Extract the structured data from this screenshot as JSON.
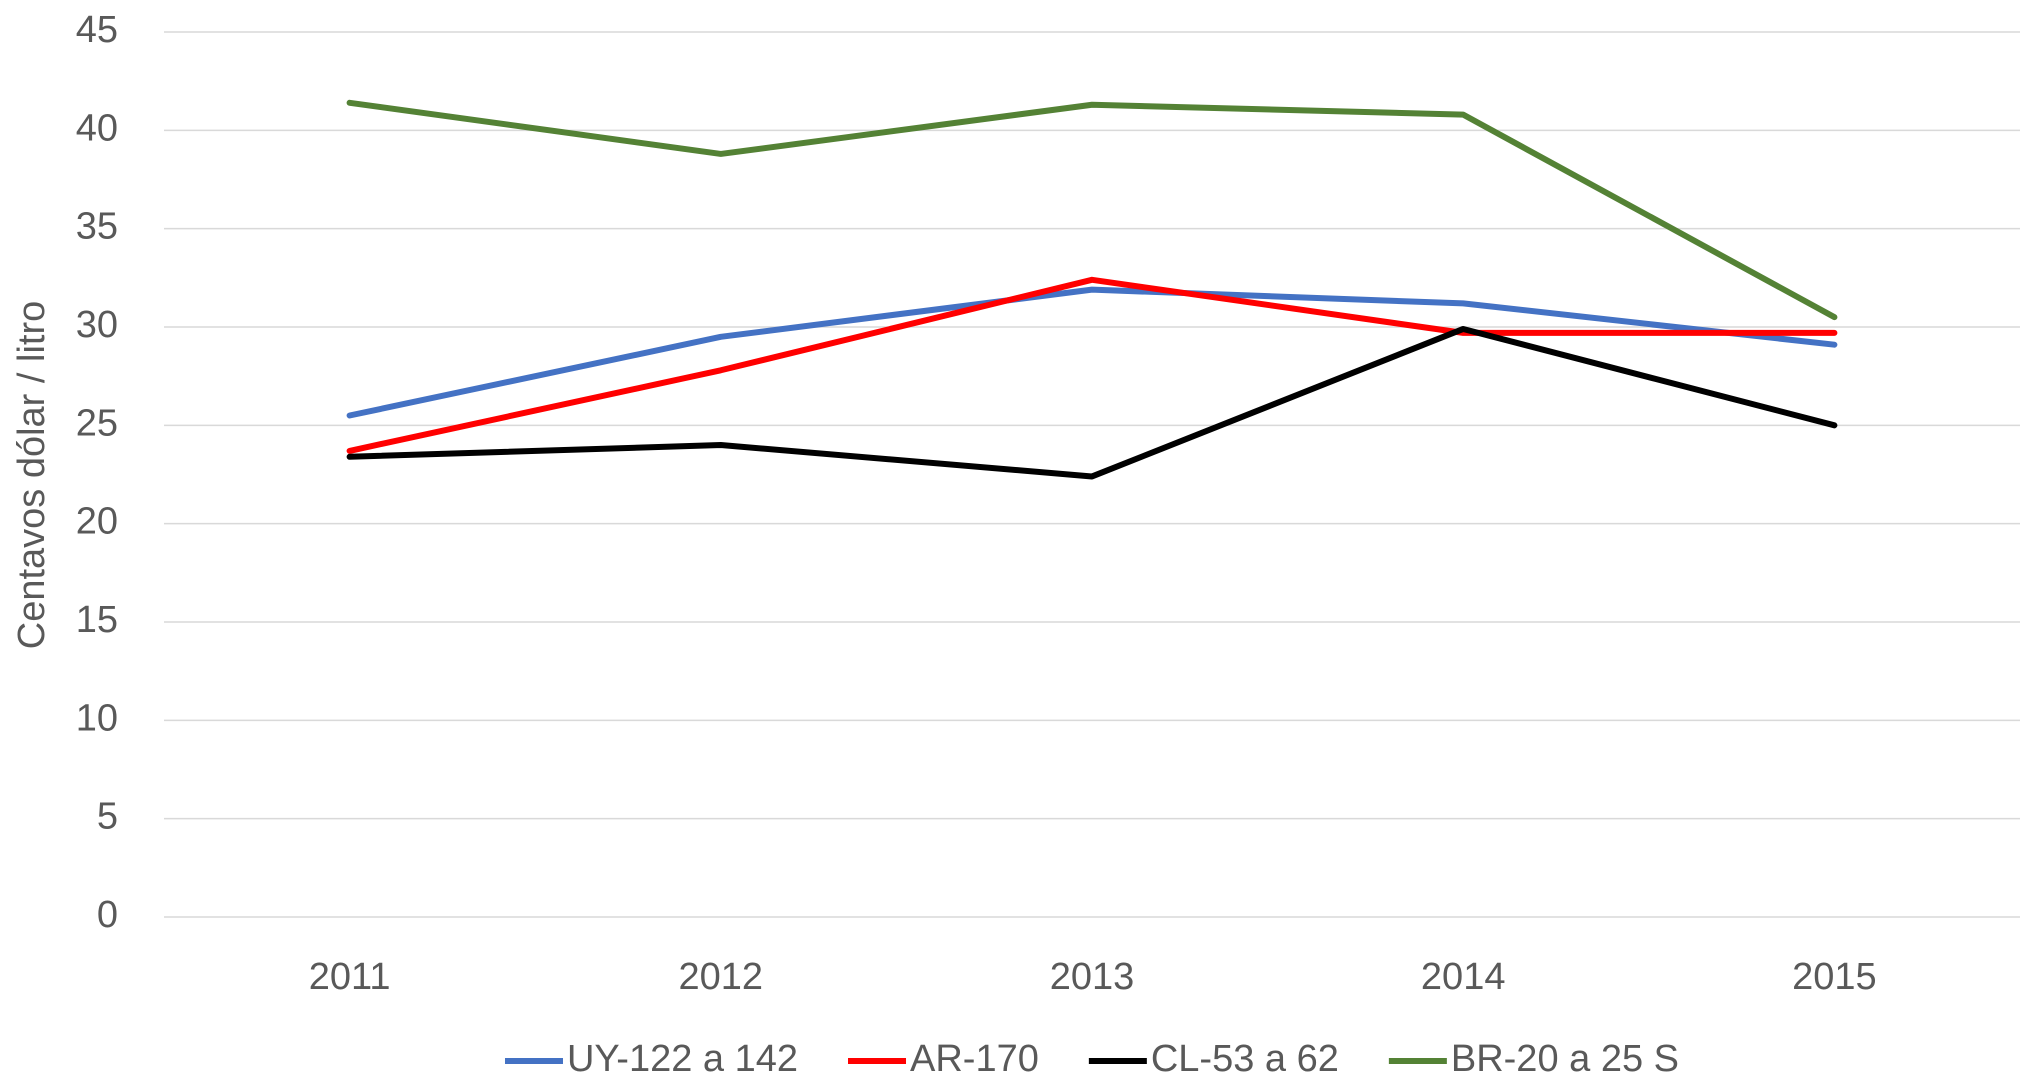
{
  "chart_data": {
    "type": "line",
    "y_label": "Centavos dólar / litro",
    "categories": [
      "2011",
      "2012",
      "2013",
      "2014",
      "2015"
    ],
    "series": [
      {
        "name": "UY-122 a 142",
        "color": "#4472c4",
        "values": [
          25.5,
          29.5,
          31.9,
          31.2,
          29.1
        ]
      },
      {
        "name": "AR-170",
        "color": "#ff0000",
        "values": [
          23.7,
          27.8,
          32.4,
          29.7,
          29.7
        ]
      },
      {
        "name": "CL-53 a 62",
        "color": "#000000",
        "values": [
          23.4,
          24.0,
          22.4,
          29.9,
          25.0
        ]
      },
      {
        "name": "BR-20 a 25 S",
        "color": "#548235",
        "values": [
          41.4,
          38.8,
          41.3,
          40.8,
          30.5
        ]
      }
    ],
    "ylim": [
      0,
      45
    ],
    "yticks": [
      0,
      5,
      10,
      15,
      20,
      25,
      30,
      35,
      40,
      45
    ],
    "grid": true,
    "legend": "bottom"
  }
}
